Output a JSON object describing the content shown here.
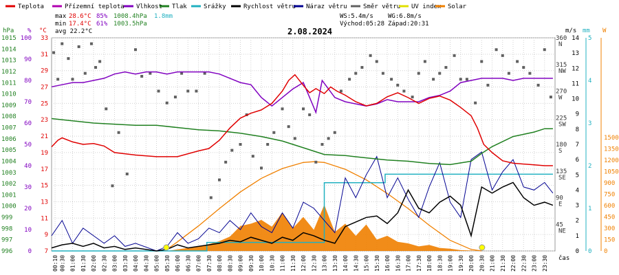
{
  "legend": [
    {
      "label": "Teplota",
      "color": "#e00000"
    },
    {
      "label": "Přízemní teplota",
      "color": "#b000b0"
    },
    {
      "label": "Vlhkost",
      "color": "#8000c0"
    },
    {
      "label": "Tlak",
      "color": "#208020"
    },
    {
      "label": "Srážky",
      "color": "#20b0c0"
    },
    {
      "label": "Rychlost větru",
      "color": "#000000"
    },
    {
      "label": "Náraz větru",
      "color": "#000090"
    },
    {
      "label": "Směr větru",
      "color": "#606060"
    },
    {
      "label": "UV index",
      "color": "#e0e000"
    },
    {
      "label": "Solar",
      "color": "#f08000"
    }
  ],
  "stats": {
    "max_prefix": "max",
    "max_temp": "28.6°C",
    "max_hum": "85%",
    "max_press": "1008.4hPa",
    "max_rain": "1.8mm",
    "min_prefix": "min",
    "min_temp": "17.4°C",
    "min_hum": "61%",
    "min_press": "1003.5hPa",
    "avg_label": "avg 22.2°C",
    "ws": "WS:5.4m/s",
    "wg": "WG:6.8m/s",
    "sunrise": "Východ:05:28",
    "sunset": "Západ:20:31"
  },
  "chart_data": {
    "type": "line",
    "title": "2.08.2024",
    "xlabel": "čas",
    "x_ticks": [
      "00:10",
      "00:30",
      "01:00",
      "01:30",
      "02:00",
      "02:30",
      "03:00",
      "03:30",
      "04:00",
      "04:30",
      "05:00",
      "05:30",
      "06:00",
      "06:30",
      "07:00",
      "07:30",
      "08:00",
      "08:30",
      "09:00",
      "09:30",
      "10:00",
      "10:30",
      "11:00",
      "11:30",
      "12:00",
      "12:30",
      "13:00",
      "13:30",
      "14:00",
      "14:30",
      "15:00",
      "15:30",
      "16:00",
      "16:30",
      "17:00",
      "17:30",
      "18:00",
      "18:30",
      "19:00",
      "19:30",
      "20:00",
      "20:30",
      "21:00",
      "21:30",
      "22:00",
      "22:30",
      "23:00",
      "23:30"
    ],
    "axes": {
      "hpa": {
        "label": "hPa",
        "ticks": [
          996,
          997,
          998,
          999,
          1000,
          1001,
          1002,
          1003,
          1004,
          1005,
          1006,
          1007,
          1008,
          1009,
          1010,
          1011,
          1012,
          1013,
          1014,
          1015
        ]
      },
      "percent": {
        "label": "%",
        "ticks": [
          0,
          10,
          20,
          30,
          40,
          50,
          60,
          70,
          80,
          90,
          100
        ]
      },
      "celsius": {
        "label": "°C",
        "ticks": [
          7,
          9,
          11,
          13,
          15,
          17,
          19,
          21,
          23,
          25,
          27,
          29,
          31,
          33
        ]
      },
      "ms": {
        "label": "m/s",
        "ticks": [
          0,
          1,
          2,
          3,
          4,
          5,
          6,
          7,
          8,
          9,
          10,
          11,
          12,
          13,
          14
        ]
      },
      "direction": {
        "ticks": [
          {
            "v": 45,
            "t": "45",
            "c": "NE"
          },
          {
            "v": 90,
            "t": "90",
            "c": "E"
          },
          {
            "v": 135,
            "t": "135",
            "c": "SE"
          },
          {
            "v": 180,
            "t": "180",
            "c": "S"
          },
          {
            "v": 225,
            "t": "225",
            "c": "SW"
          },
          {
            "v": 270,
            "t": "270",
            "c": "W"
          },
          {
            "v": 315,
            "t": "315",
            "c": "NW"
          },
          {
            "v": 360,
            "t": "360",
            "c": "N"
          }
        ]
      },
      "mm": {
        "label": "mm",
        "ticks": [
          0,
          1,
          2,
          3,
          4,
          5
        ]
      },
      "watt": {
        "label": "W",
        "ticks": [
          0,
          150,
          300,
          450,
          600,
          750,
          900,
          1050,
          1200,
          1350,
          1500
        ]
      }
    },
    "series": [
      {
        "name": "Teplota",
        "unit": "°C",
        "x": [
          0,
          0.3,
          0.5,
          1,
          1.5,
          2,
          2.5,
          3,
          4,
          5,
          6,
          7,
          7.5,
          8,
          8.5,
          9,
          9.5,
          10,
          10.5,
          11,
          11.3,
          11.6,
          12,
          12.3,
          12.6,
          13,
          13.3,
          13.6,
          14,
          14.5,
          15,
          15.5,
          16,
          16.5,
          17,
          17.5,
          18,
          18.5,
          19,
          19.5,
          20,
          20.3,
          20.6,
          21,
          21.5,
          22,
          22.5,
          23,
          23.5,
          23.9
        ],
        "y": [
          19.7,
          20.5,
          20.8,
          20.3,
          20.0,
          20.1,
          19.8,
          19.0,
          18.7,
          18.5,
          18.5,
          19.2,
          19.5,
          20.5,
          22.0,
          23.2,
          23.8,
          24.2,
          25.0,
          26.5,
          27.8,
          28.5,
          27.2,
          26.3,
          26.8,
          26.2,
          27.0,
          26.5,
          26.0,
          25.2,
          24.7,
          25.0,
          25.8,
          26.3,
          25.7,
          25.0,
          25.6,
          25.9,
          25.4,
          24.5,
          23.5,
          22.0,
          20.0,
          19.0,
          18.0,
          17.7,
          17.6,
          17.5,
          17.4,
          17.4
        ]
      },
      {
        "name": "Vlhkost",
        "unit": "%",
        "x": [
          0,
          0.5,
          1,
          1.5,
          2,
          2.5,
          3,
          3.5,
          4,
          4.5,
          5,
          5.5,
          6,
          6.5,
          7,
          7.5,
          8,
          8.5,
          9,
          9.5,
          10,
          10.5,
          11,
          11.5,
          12,
          12.3,
          12.6,
          12.9,
          13.2,
          13.5,
          14,
          14.5,
          15,
          15.5,
          16,
          16.5,
          17,
          17.5,
          18,
          18.5,
          19,
          19.5,
          20,
          20.5,
          21,
          21.5,
          22,
          22.5,
          23,
          23.5,
          23.9
        ],
        "y": [
          77,
          78,
          79,
          79,
          80,
          81,
          83,
          84,
          83,
          84,
          84,
          83,
          84,
          84,
          84,
          84,
          83,
          81,
          79,
          78,
          72,
          68,
          72,
          76,
          79,
          72,
          65,
          80,
          76,
          72,
          70,
          69,
          68,
          69,
          71,
          70,
          70,
          70,
          72,
          73,
          75,
          79,
          80,
          81,
          81,
          81,
          80,
          81,
          81,
          81,
          81
        ]
      },
      {
        "name": "Tlak",
        "unit": "hPa",
        "x": [
          0,
          1,
          2,
          3,
          4,
          5,
          6,
          7,
          8,
          9,
          10,
          11,
          12,
          13,
          14,
          15,
          16,
          17,
          18,
          19,
          20,
          20.5,
          21,
          22,
          23,
          23.5,
          23.9
        ],
        "y": [
          1007.8,
          1007.6,
          1007.4,
          1007.3,
          1007.2,
          1007.2,
          1007.0,
          1006.8,
          1006.7,
          1006.5,
          1006.2,
          1005.8,
          1005.2,
          1004.6,
          1004.5,
          1004.3,
          1004.1,
          1004.0,
          1003.8,
          1003.7,
          1004.0,
          1004.7,
          1005.3,
          1006.2,
          1006.6,
          1006.9,
          1006.9
        ]
      },
      {
        "name": "Srážky",
        "unit": "mm",
        "x": [
          0,
          7.3,
          7.4,
          12.9,
          13.0,
          15.8,
          15.9,
          23.9
        ],
        "y": [
          0,
          0,
          0.2,
          0.2,
          1.6,
          1.6,
          1.8,
          1.8
        ]
      },
      {
        "name": "Rychlost větru",
        "unit": "m/s",
        "x": [
          0,
          0.5,
          1,
          1.5,
          2,
          2.5,
          3,
          3.5,
          4,
          5,
          5.5,
          6,
          6.5,
          7,
          7.5,
          8,
          8.5,
          9,
          9.5,
          10,
          10.5,
          11,
          11.5,
          12,
          12.5,
          13,
          13.5,
          14,
          14.5,
          15,
          15.5,
          16,
          16.5,
          17,
          17.5,
          18,
          18.5,
          19,
          19.5,
          20,
          20.5,
          21,
          21.5,
          22,
          22.5,
          23,
          23.5,
          23.9
        ],
        "y": [
          0.2,
          0.4,
          0.5,
          0.3,
          0.5,
          0.2,
          0.3,
          0.1,
          0.2,
          0,
          0.1,
          0.4,
          0.2,
          0.3,
          0.4,
          0.5,
          0.7,
          0.6,
          0.9,
          0.7,
          0.5,
          0.9,
          0.7,
          1.2,
          1.0,
          0.7,
          0.5,
          1.6,
          1.9,
          2.2,
          2.3,
          1.8,
          2.5,
          4.0,
          2.8,
          2.5,
          3.2,
          3.6,
          3.0,
          1.0,
          4.2,
          3.8,
          4.2,
          4.5,
          3.5,
          3.0,
          3.2,
          3.0
        ]
      },
      {
        "name": "Náraz větru",
        "unit": "m/s",
        "x": [
          0,
          0.5,
          1,
          1.5,
          2,
          2.5,
          3,
          3.5,
          4,
          5,
          5.5,
          6,
          6.5,
          7,
          7.5,
          8,
          8.5,
          9,
          9.5,
          10,
          10.5,
          11,
          11.5,
          12,
          12.5,
          13,
          13.5,
          14,
          14.5,
          15,
          15.5,
          16,
          16.5,
          17,
          17.5,
          18,
          18.5,
          19,
          19.5,
          20,
          20.5,
          21,
          21.5,
          22,
          22.5,
          23,
          23.5,
          23.9
        ],
        "y": [
          1,
          2,
          0.5,
          1.5,
          1,
          0.5,
          1,
          0.3,
          0.5,
          0,
          0.3,
          1.2,
          0.5,
          0.8,
          1.5,
          1.2,
          2,
          1.4,
          2.5,
          1.6,
          1.2,
          2.5,
          1.5,
          3.2,
          2.8,
          2,
          1.2,
          4.8,
          3.5,
          5,
          6.2,
          3.5,
          4.8,
          3.4,
          2.2,
          4.2,
          5.8,
          3.2,
          2.2,
          6,
          6.5,
          4,
          5.2,
          6,
          4.2,
          4,
          4.5,
          3.8
        ]
      },
      {
        "name": "Solar",
        "unit": "W",
        "x": [
          5.5,
          6,
          6.5,
          7,
          7.5,
          8,
          8.5,
          9,
          9.5,
          10,
          10.5,
          11,
          11.5,
          12,
          12.5,
          13,
          13.5,
          14,
          14.5,
          15,
          15.5,
          16,
          16.5,
          17,
          17.5,
          18,
          18.5,
          19,
          19.5,
          20,
          20.5
        ],
        "y": [
          0,
          20,
          40,
          60,
          90,
          130,
          190,
          330,
          360,
          410,
          320,
          510,
          300,
          450,
          280,
          610,
          250,
          360,
          200,
          350,
          150,
          200,
          120,
          100,
          60,
          80,
          40,
          30,
          10,
          5,
          0
        ]
      },
      {
        "name": "Solar max",
        "unit": "W",
        "x": [
          5.4,
          6,
          7,
          8,
          9,
          10,
          11,
          12,
          12.5,
          13,
          14,
          15,
          16,
          17,
          18,
          19,
          20,
          20.5
        ],
        "y": [
          0,
          120,
          330,
          560,
          780,
          960,
          1090,
          1170,
          1180,
          1170,
          1080,
          940,
          760,
          560,
          340,
          140,
          20,
          0
        ]
      },
      {
        "name": "Směr větru",
        "unit": "°",
        "x": [
          0.1,
          0.3,
          0.5,
          0.8,
          1.0,
          1.3,
          1.6,
          1.9,
          2.1,
          2.3,
          2.6,
          2.9,
          3.2,
          3.6,
          4.0,
          4.3,
          4.7,
          5.1,
          5.5,
          5.9,
          6.2,
          6.5,
          6.9,
          7.3,
          7.6,
          8.0,
          8.3,
          8.6,
          9.0,
          9.3,
          9.6,
          10.0,
          10.3,
          10.6,
          11.0,
          11.3,
          11.6,
          12.0,
          12.3,
          12.6,
          12.9,
          13.2,
          13.5,
          13.8,
          14.2,
          14.5,
          14.8,
          15.2,
          15.5,
          15.8,
          16.2,
          16.5,
          16.8,
          17.2,
          17.5,
          17.8,
          18.2,
          18.5,
          18.8,
          19.2,
          19.5,
          19.8,
          20.2,
          20.5,
          20.8,
          21.2,
          21.5,
          21.8,
          22.2,
          22.5,
          22.8,
          23.2,
          23.5,
          23.8
        ],
        "y": [
          335,
          290,
          350,
          325,
          290,
          345,
          300,
          350,
          310,
          320,
          240,
          110,
          200,
          130,
          340,
          295,
          300,
          270,
          250,
          260,
          300,
          270,
          270,
          300,
          90,
          120,
          150,
          170,
          180,
          230,
          160,
          140,
          180,
          200,
          240,
          210,
          190,
          240,
          230,
          150,
          180,
          190,
          200,
          270,
          290,
          300,
          310,
          330,
          320,
          300,
          290,
          280,
          270,
          260,
          300,
          320,
          290,
          300,
          310,
          330,
          290,
          290,
          250,
          320,
          280,
          340,
          330,
          300,
          320,
          310,
          300,
          280,
          340,
          260
        ]
      }
    ]
  }
}
